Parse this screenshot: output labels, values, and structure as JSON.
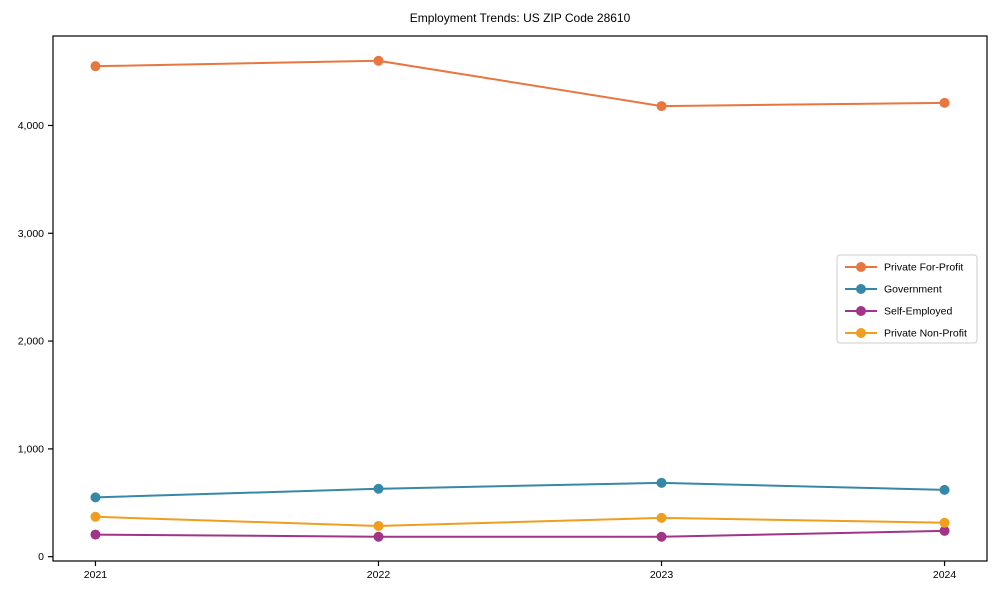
{
  "chart_data": {
    "type": "line",
    "title": "Employment Trends: US ZIP Code 28610",
    "xlabel": "",
    "ylabel": "",
    "x": [
      2021,
      2022,
      2023,
      2024
    ],
    "x_tick_labels": [
      "2021",
      "2022",
      "2023",
      "2024"
    ],
    "y_ticks": [
      0,
      1000,
      2000,
      3000,
      4000
    ],
    "y_tick_labels": [
      "0",
      "1,000",
      "2,000",
      "3,000",
      "4,000"
    ],
    "xlim": [
      2020.85,
      2024.15
    ],
    "ylim": [
      -40,
      4830
    ],
    "grid": false,
    "legend_position": "right-middle",
    "series": [
      {
        "name": "Private For-Profit",
        "color": "#e8763f",
        "values": [
          4550,
          4600,
          4180,
          4210
        ]
      },
      {
        "name": "Government",
        "color": "#3588a8",
        "values": [
          550,
          630,
          685,
          620
        ]
      },
      {
        "name": "Self-Employed",
        "color": "#a23487",
        "values": [
          205,
          185,
          185,
          240
        ]
      },
      {
        "name": "Private Non-Profit",
        "color": "#f09e20",
        "values": [
          370,
          285,
          360,
          315
        ]
      }
    ],
    "axis_color": "#000000",
    "legend_border_color": "#cccccc",
    "legend_background": "#ffffff"
  }
}
